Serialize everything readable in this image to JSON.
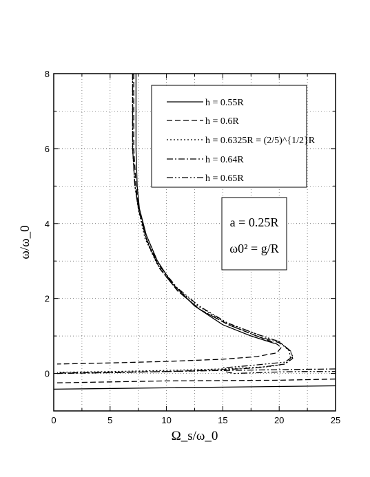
{
  "chart_data": {
    "type": "line",
    "xlabel": "Ω_s/ω_0",
    "ylabel": "ω/ω_0",
    "xlim": [
      0,
      25
    ],
    "ylim": [
      -1,
      8
    ],
    "xticks": [
      0,
      5,
      10,
      15,
      20,
      25
    ],
    "yticks": [
      0,
      2,
      4,
      6,
      8
    ],
    "grid": true,
    "legend_position": "top-right",
    "annotations": [
      "a = 0.25R",
      "ω0² = g/R"
    ],
    "series": [
      {
        "name": "h = 0.55R",
        "dash": "solid",
        "branches": [
          [
            [
              7.3,
              8.0
            ],
            [
              7.3,
              7.0
            ],
            [
              7.3,
              6.0
            ],
            [
              7.4,
              5.0
            ],
            [
              7.6,
              4.4
            ],
            [
              8.2,
              3.7
            ],
            [
              9.2,
              3.0
            ],
            [
              10.5,
              2.4
            ],
            [
              12.5,
              1.8
            ],
            [
              15.0,
              1.3
            ],
            [
              17.5,
              1.0
            ],
            [
              19.6,
              0.8
            ]
          ],
          [
            [
              0,
              -0.42
            ],
            [
              25,
              -0.33
            ]
          ]
        ]
      },
      {
        "name": "h = 0.6R",
        "dash": "dashed",
        "branches": [
          [
            [
              7.1,
              8.0
            ],
            [
              7.1,
              7.0
            ],
            [
              7.1,
              6.0
            ],
            [
              7.3,
              5.0
            ],
            [
              7.6,
              4.3
            ],
            [
              8.3,
              3.5
            ],
            [
              9.4,
              2.8
            ],
            [
              11.0,
              2.2
            ],
            [
              13.0,
              1.7
            ],
            [
              15.5,
              1.3
            ],
            [
              18.0,
              1.0
            ],
            [
              19.7,
              0.8
            ],
            [
              20.2,
              0.7
            ],
            [
              19.8,
              0.55
            ],
            [
              18.0,
              0.45
            ],
            [
              15.0,
              0.38
            ],
            [
              10.0,
              0.32
            ],
            [
              5.0,
              0.28
            ],
            [
              0.3,
              0.25
            ]
          ],
          [
            [
              0.3,
              -0.25
            ],
            [
              10,
              -0.2
            ],
            [
              20,
              -0.18
            ],
            [
              25,
              -0.15
            ]
          ]
        ]
      },
      {
        "name": "h = 0.6325R = (2/5)^{1/2}R",
        "dash": "dotted",
        "branches": [
          [
            [
              7.0,
              8.0
            ],
            [
              7.0,
              7.0
            ],
            [
              7.0,
              6.0
            ],
            [
              7.2,
              5.0
            ],
            [
              7.5,
              4.4
            ],
            [
              8.1,
              3.6
            ],
            [
              9.2,
              2.9
            ],
            [
              10.8,
              2.3
            ],
            [
              12.8,
              1.8
            ],
            [
              15.3,
              1.35
            ],
            [
              18.0,
              1.05
            ],
            [
              20.0,
              0.85
            ],
            [
              20.9,
              0.6
            ],
            [
              21.0,
              0.4
            ],
            [
              20.5,
              0.25
            ],
            [
              19.0,
              0.18
            ],
            [
              15.0,
              0.12
            ],
            [
              10.0,
              0.08
            ],
            [
              5.0,
              0.05
            ],
            [
              0.3,
              0.03
            ]
          ]
        ]
      },
      {
        "name": "h = 0.64R",
        "dash": "dashdot",
        "branches": [
          [
            [
              7.0,
              8.0
            ],
            [
              7.0,
              7.0
            ],
            [
              7.0,
              6.0
            ],
            [
              7.2,
              5.0
            ],
            [
              7.6,
              4.3
            ],
            [
              8.3,
              3.5
            ],
            [
              9.4,
              2.8
            ],
            [
              11.0,
              2.2
            ],
            [
              13.0,
              1.7
            ],
            [
              15.5,
              1.3
            ],
            [
              18.0,
              1.0
            ],
            [
              20.0,
              0.82
            ],
            [
              21.0,
              0.6
            ],
            [
              21.2,
              0.4
            ],
            [
              20.5,
              0.25
            ],
            [
              18.0,
              0.15
            ],
            [
              15.0,
              0.1
            ],
            [
              10.0,
              0.05
            ],
            [
              5.0,
              0.02
            ],
            [
              0.3,
              0.0
            ]
          ],
          [
            [
              25,
              0.12
            ],
            [
              20,
              0.1
            ],
            [
              15,
              0.08
            ],
            [
              10,
              0.05
            ],
            [
              5,
              0.03
            ],
            [
              0.3,
              0.01
            ]
          ]
        ]
      },
      {
        "name": "h = 0.65R",
        "dash": "dashdotdot",
        "branches": [
          [
            [
              7.0,
              8.0
            ],
            [
              7.0,
              7.0
            ],
            [
              7.0,
              6.0
            ],
            [
              7.2,
              5.0
            ],
            [
              7.5,
              4.4
            ],
            [
              8.2,
              3.6
            ],
            [
              9.3,
              2.9
            ],
            [
              10.9,
              2.3
            ],
            [
              12.9,
              1.8
            ],
            [
              15.4,
              1.35
            ],
            [
              18.0,
              1.05
            ],
            [
              20.0,
              0.85
            ],
            [
              21.0,
              0.6
            ],
            [
              21.2,
              0.45
            ],
            [
              20.5,
              0.3
            ],
            [
              17.0,
              0.2
            ],
            [
              15.0,
              0.15
            ],
            [
              15.2,
              0.05
            ],
            [
              16.0,
              0.0
            ],
            [
              18.0,
              0.02
            ],
            [
              20.0,
              0.04
            ],
            [
              22.0,
              0.05
            ],
            [
              25.0,
              0.05
            ]
          ]
        ]
      }
    ]
  }
}
